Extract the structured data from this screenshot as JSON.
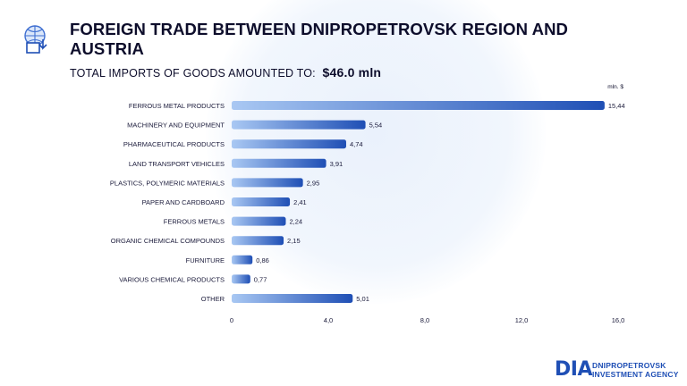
{
  "header": {
    "title": "FOREIGN TRADE BETWEEN DNIPROPETROVSK REGION AND AUSTRIA",
    "subtitle_label": "TOTAL IMPORTS OF GOODS AMOUNTED TO:",
    "subtitle_value": "$46.0  mln",
    "icon": "globe-trade-icon"
  },
  "footer": {
    "logo_mark": "DIA",
    "logo_line1": "DNIPROPETROVSK",
    "logo_line2": "INVESTMENT AGENCY"
  },
  "colors": {
    "bar_start": "#a9c8f3",
    "bar_end": "#1f4fb5",
    "accent": "#1f4fb5"
  },
  "chart_data": {
    "type": "bar",
    "orientation": "horizontal",
    "unit_label": "mln. $",
    "categories": [
      "FERROUS METAL PRODUCTS",
      "MACHINERY AND EQUIPMENT",
      "PHARMACEUTICAL PRODUCTS",
      "LAND TRANSPORT VEHICLES",
      "PLASTICS, POLYMERIC MATERIALS",
      "PAPER AND CARDBOARD",
      "FERROUS METALS",
      "ORGANIC CHEMICAL COMPOUNDS",
      "FURNITURE",
      "VARIOUS CHEMICAL PRODUCTS",
      "OTHER"
    ],
    "values": [
      15.44,
      5.54,
      4.74,
      3.91,
      2.95,
      2.41,
      2.24,
      2.15,
      0.86,
      0.77,
      5.01
    ],
    "value_labels": [
      "15,44",
      "5,54",
      "4,74",
      "3,91",
      "2,95",
      "2,41",
      "2,24",
      "2,15",
      "0,86",
      "0,77",
      "5,01"
    ],
    "xlim": [
      0,
      16
    ],
    "xticks": [
      0,
      4,
      8,
      12,
      16
    ],
    "xtick_labels": [
      "0",
      "4,0",
      "8,0",
      "12,0",
      "16,0"
    ],
    "grid": false,
    "legend": "none"
  }
}
